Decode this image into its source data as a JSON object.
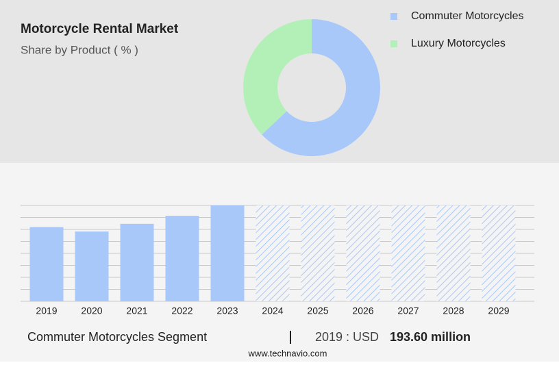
{
  "chart_data": [
    {
      "type": "pie",
      "title": "Motorcycle Rental Market",
      "subtitle": "Share by Product ( % )",
      "donut": true,
      "categories": [
        "Commuter Motorcycles",
        "Luxury Motorcycles"
      ],
      "values": [
        63,
        37
      ],
      "colors": [
        "#a8c8fa",
        "#b3f0b8"
      ]
    },
    {
      "type": "bar",
      "categories": [
        "2019",
        "2020",
        "2021",
        "2022",
        "2023",
        "2024",
        "2025",
        "2026",
        "2027",
        "2028",
        "2029"
      ],
      "values": [
        193.6,
        182,
        202,
        223,
        250,
        null,
        null,
        null,
        null,
        null,
        null
      ],
      "color": "#a8c8fa",
      "ylim": [
        0,
        250
      ],
      "yticks": [
        0,
        31.25,
        62.5,
        93.75,
        125,
        156.25,
        187.5,
        218.75,
        250
      ],
      "grid": true,
      "segment": "Commuter Motorcycles Segment",
      "highlight_label": "2019 : USD",
      "highlight_value": "193.60 million",
      "highlight_number": 193.6,
      "source": "www.technavio.com"
    }
  ]
}
